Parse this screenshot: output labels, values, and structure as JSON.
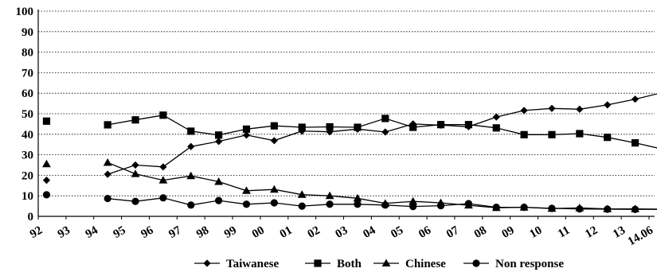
{
  "chart_data": {
    "type": "line",
    "title": "",
    "xlabel": "",
    "ylabel": "",
    "ylim": [
      0,
      100
    ],
    "yticks": [
      0,
      10,
      20,
      30,
      40,
      50,
      60,
      70,
      80,
      90,
      100
    ],
    "grid": true,
    "legend_position": "bottom",
    "x_tick_labels": [
      "92",
      "93",
      "94",
      "95",
      "96",
      "97",
      "98",
      "99",
      "00",
      "01",
      "02",
      "03",
      "04",
      "05",
      "06",
      "07",
      "08",
      "09",
      "10",
      "11",
      "12",
      "13",
      "14.06"
    ],
    "series": [
      {
        "name": "Taiwanese",
        "marker": "diamond",
        "points": [
          {
            "x": 92.3,
            "y": 17.6
          },
          {
            "x": 94.5,
            "y": 20.5
          },
          {
            "x": 95.5,
            "y": 25.0
          },
          {
            "x": 96.5,
            "y": 24.1
          },
          {
            "x": 97.5,
            "y": 34.0
          },
          {
            "x": 98.5,
            "y": 36.5
          },
          {
            "x": 99.5,
            "y": 39.6
          },
          {
            "x": 100.5,
            "y": 36.9
          },
          {
            "x": 101.5,
            "y": 41.6
          },
          {
            "x": 102.5,
            "y": 41.2
          },
          {
            "x": 103.5,
            "y": 42.5
          },
          {
            "x": 104.5,
            "y": 41.1
          },
          {
            "x": 105.5,
            "y": 45.0
          },
          {
            "x": 106.5,
            "y": 44.4
          },
          {
            "x": 107.5,
            "y": 43.7
          },
          {
            "x": 108.5,
            "y": 48.4
          },
          {
            "x": 109.5,
            "y": 51.6
          },
          {
            "x": 110.5,
            "y": 52.6
          },
          {
            "x": 111.5,
            "y": 52.2
          },
          {
            "x": 112.5,
            "y": 54.3
          },
          {
            "x": 113.5,
            "y": 57.1
          },
          {
            "x": 114.5,
            "y": 60.4
          }
        ]
      },
      {
        "name": "Both",
        "marker": "square",
        "points": [
          {
            "x": 92.3,
            "y": 46.4
          },
          {
            "x": 94.5,
            "y": 44.6
          },
          {
            "x": 95.5,
            "y": 47.0
          },
          {
            "x": 96.5,
            "y": 49.3
          },
          {
            "x": 97.5,
            "y": 41.5
          },
          {
            "x": 98.5,
            "y": 39.6
          },
          {
            "x": 99.5,
            "y": 42.5
          },
          {
            "x": 100.5,
            "y": 44.1
          },
          {
            "x": 101.5,
            "y": 43.4
          },
          {
            "x": 102.5,
            "y": 43.6
          },
          {
            "x": 103.5,
            "y": 43.4
          },
          {
            "x": 104.5,
            "y": 47.7
          },
          {
            "x": 105.5,
            "y": 43.4
          },
          {
            "x": 106.5,
            "y": 44.7
          },
          {
            "x": 107.5,
            "y": 44.7
          },
          {
            "x": 108.5,
            "y": 43.1
          },
          {
            "x": 109.5,
            "y": 39.8
          },
          {
            "x": 110.5,
            "y": 39.8
          },
          {
            "x": 111.5,
            "y": 40.3
          },
          {
            "x": 112.5,
            "y": 38.5
          },
          {
            "x": 113.5,
            "y": 35.8
          },
          {
            "x": 114.5,
            "y": 32.7
          }
        ]
      },
      {
        "name": "Chinese",
        "marker": "triangle",
        "points": [
          {
            "x": 92.3,
            "y": 25.5
          },
          {
            "x": 94.5,
            "y": 26.2
          },
          {
            "x": 95.5,
            "y": 20.7
          },
          {
            "x": 96.5,
            "y": 17.6
          },
          {
            "x": 97.5,
            "y": 19.7
          },
          {
            "x": 98.5,
            "y": 16.9
          },
          {
            "x": 99.5,
            "y": 12.5
          },
          {
            "x": 100.5,
            "y": 13.1
          },
          {
            "x": 101.5,
            "y": 10.6
          },
          {
            "x": 102.5,
            "y": 10.0
          },
          {
            "x": 103.5,
            "y": 8.8
          },
          {
            "x": 104.5,
            "y": 6.3
          },
          {
            "x": 105.5,
            "y": 7.3
          },
          {
            "x": 106.5,
            "y": 6.6
          },
          {
            "x": 107.5,
            "y": 5.4
          },
          {
            "x": 108.5,
            "y": 4.2
          },
          {
            "x": 109.5,
            "y": 4.4
          },
          {
            "x": 110.5,
            "y": 3.8
          },
          {
            "x": 111.5,
            "y": 4.1
          },
          {
            "x": 112.5,
            "y": 3.6
          },
          {
            "x": 113.5,
            "y": 3.6
          },
          {
            "x": 114.5,
            "y": 3.5
          }
        ]
      },
      {
        "name": "Non response",
        "marker": "circle",
        "points": [
          {
            "x": 92.3,
            "y": 10.5
          },
          {
            "x": 94.5,
            "y": 8.7
          },
          {
            "x": 95.5,
            "y": 7.3
          },
          {
            "x": 96.5,
            "y": 9.0
          },
          {
            "x": 97.5,
            "y": 5.5
          },
          {
            "x": 98.5,
            "y": 7.7
          },
          {
            "x": 99.5,
            "y": 5.9
          },
          {
            "x": 100.5,
            "y": 6.6
          },
          {
            "x": 101.5,
            "y": 5.0
          },
          {
            "x": 102.5,
            "y": 5.9
          },
          {
            "x": 103.5,
            "y": 5.9
          },
          {
            "x": 104.5,
            "y": 5.5
          },
          {
            "x": 105.5,
            "y": 4.8
          },
          {
            "x": 106.5,
            "y": 5.2
          },
          {
            "x": 107.5,
            "y": 6.2
          },
          {
            "x": 108.5,
            "y": 4.4
          },
          {
            "x": 109.5,
            "y": 4.4
          },
          {
            "x": 110.5,
            "y": 3.9
          },
          {
            "x": 111.5,
            "y": 3.6
          },
          {
            "x": 112.5,
            "y": 3.5
          },
          {
            "x": 113.5,
            "y": 3.4
          },
          {
            "x": 114.5,
            "y": 3.4
          }
        ]
      }
    ],
    "colors": {
      "series": "#000000",
      "grid": "#000000"
    }
  }
}
